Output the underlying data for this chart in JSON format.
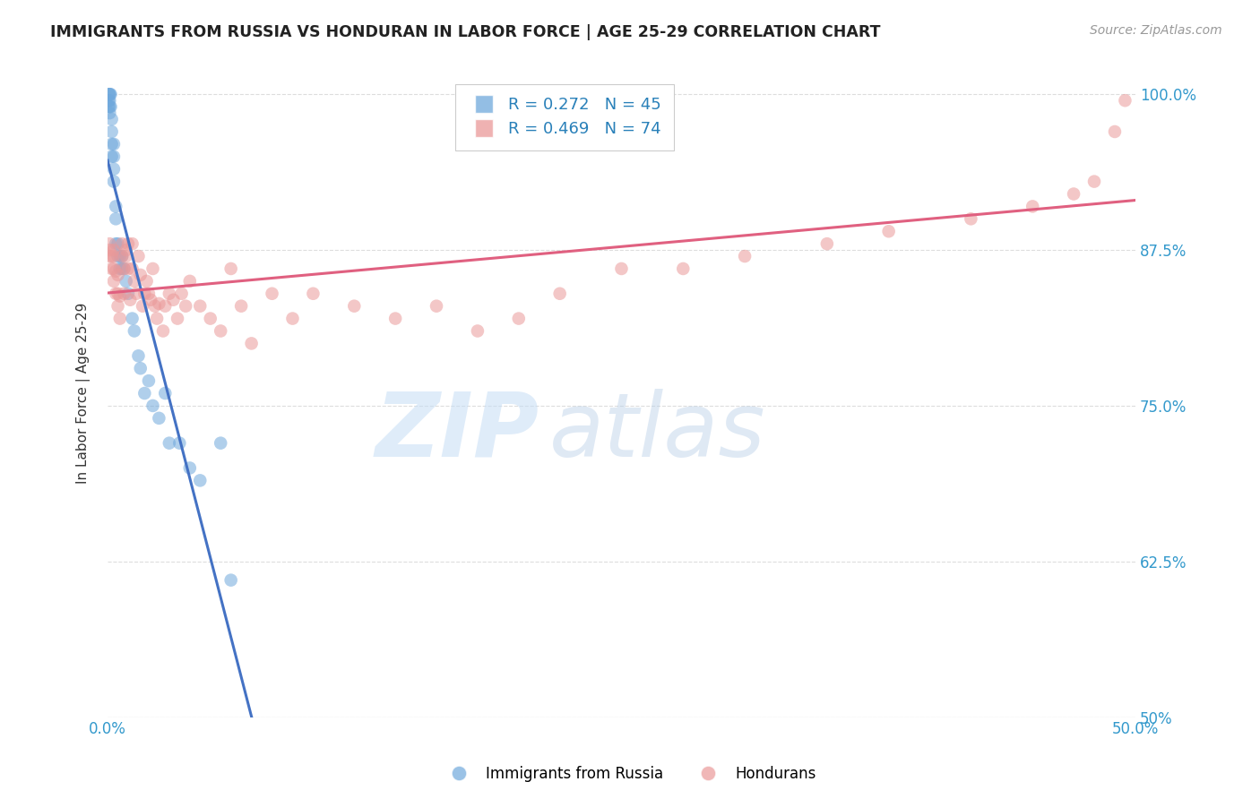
{
  "title": "IMMIGRANTS FROM RUSSIA VS HONDURAN IN LABOR FORCE | AGE 25-29 CORRELATION CHART",
  "source": "Source: ZipAtlas.com",
  "ylabel": "In Labor Force | Age 25-29",
  "xlim": [
    0.0,
    0.5
  ],
  "ylim": [
    0.5,
    1.02
  ],
  "russia_R": 0.272,
  "russia_N": 45,
  "honduran_R": 0.469,
  "honduran_N": 74,
  "russia_color": "#6fa8dc",
  "honduran_color": "#ea9999",
  "russia_line_color": "#4472c4",
  "honduran_line_color": "#e06080",
  "legend_russia": "Immigrants from Russia",
  "legend_honduran": "Hondurans",
  "russia_x": [
    0.0005,
    0.0005,
    0.0005,
    0.001,
    0.001,
    0.001,
    0.001,
    0.001,
    0.0015,
    0.0015,
    0.002,
    0.002,
    0.002,
    0.002,
    0.003,
    0.003,
    0.003,
    0.003,
    0.004,
    0.004,
    0.004,
    0.005,
    0.005,
    0.006,
    0.006,
    0.007,
    0.007,
    0.008,
    0.009,
    0.01,
    0.012,
    0.013,
    0.015,
    0.016,
    0.018,
    0.02,
    0.022,
    0.025,
    0.028,
    0.03,
    0.035,
    0.04,
    0.045,
    0.055,
    0.06
  ],
  "russia_y": [
    0.99,
    0.995,
    1.0,
    0.985,
    0.99,
    0.995,
    1.0,
    1.0,
    0.99,
    1.0,
    0.95,
    0.96,
    0.97,
    0.98,
    0.93,
    0.94,
    0.95,
    0.96,
    0.9,
    0.91,
    0.88,
    0.88,
    0.87,
    0.87,
    0.86,
    0.87,
    0.86,
    0.86,
    0.85,
    0.84,
    0.82,
    0.81,
    0.79,
    0.78,
    0.76,
    0.77,
    0.75,
    0.74,
    0.76,
    0.72,
    0.72,
    0.7,
    0.69,
    0.72,
    0.61
  ],
  "honduran_x": [
    0.001,
    0.001,
    0.001,
    0.002,
    0.002,
    0.003,
    0.003,
    0.003,
    0.003,
    0.004,
    0.004,
    0.005,
    0.005,
    0.005,
    0.006,
    0.006,
    0.007,
    0.007,
    0.008,
    0.008,
    0.009,
    0.009,
    0.01,
    0.01,
    0.011,
    0.012,
    0.012,
    0.013,
    0.014,
    0.015,
    0.016,
    0.017,
    0.018,
    0.019,
    0.02,
    0.021,
    0.022,
    0.023,
    0.024,
    0.025,
    0.027,
    0.028,
    0.03,
    0.032,
    0.034,
    0.036,
    0.038,
    0.04,
    0.045,
    0.05,
    0.055,
    0.06,
    0.065,
    0.07,
    0.08,
    0.09,
    0.1,
    0.12,
    0.14,
    0.16,
    0.18,
    0.2,
    0.22,
    0.25,
    0.28,
    0.31,
    0.35,
    0.38,
    0.42,
    0.45,
    0.47,
    0.48,
    0.49,
    0.495
  ],
  "honduran_y": [
    0.87,
    0.875,
    0.88,
    0.86,
    0.87,
    0.85,
    0.86,
    0.87,
    0.875,
    0.84,
    0.858,
    0.83,
    0.84,
    0.855,
    0.82,
    0.838,
    0.87,
    0.88,
    0.84,
    0.86,
    0.87,
    0.875,
    0.86,
    0.88,
    0.835,
    0.86,
    0.88,
    0.85,
    0.84,
    0.87,
    0.855,
    0.83,
    0.84,
    0.85,
    0.84,
    0.835,
    0.86,
    0.83,
    0.82,
    0.832,
    0.81,
    0.83,
    0.84,
    0.835,
    0.82,
    0.84,
    0.83,
    0.85,
    0.83,
    0.82,
    0.81,
    0.86,
    0.83,
    0.8,
    0.84,
    0.82,
    0.84,
    0.83,
    0.82,
    0.83,
    0.81,
    0.82,
    0.84,
    0.86,
    0.86,
    0.87,
    0.88,
    0.89,
    0.9,
    0.91,
    0.92,
    0.93,
    0.97,
    0.995
  ],
  "watermark_zip": "ZIP",
  "watermark_atlas": "atlas",
  "background_color": "#ffffff",
  "grid_color": "#dddddd"
}
